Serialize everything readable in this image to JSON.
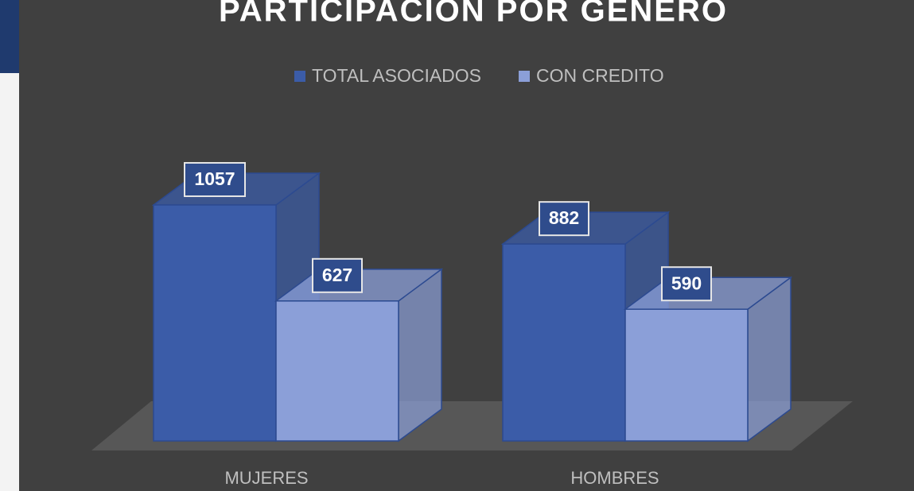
{
  "chart_data": {
    "type": "bar3d",
    "title": "PARTICIPACION POR GENERO",
    "categories": [
      "MUJERES",
      "HOMBRES"
    ],
    "series": [
      {
        "name": "TOTAL ASOCIADOS",
        "color": "#3b5ca8",
        "values": [
          1057,
          882
        ]
      },
      {
        "name": "CON CREDITO",
        "color": "#8b9fd8",
        "values": [
          627,
          590
        ]
      }
    ],
    "legend": "top"
  }
}
